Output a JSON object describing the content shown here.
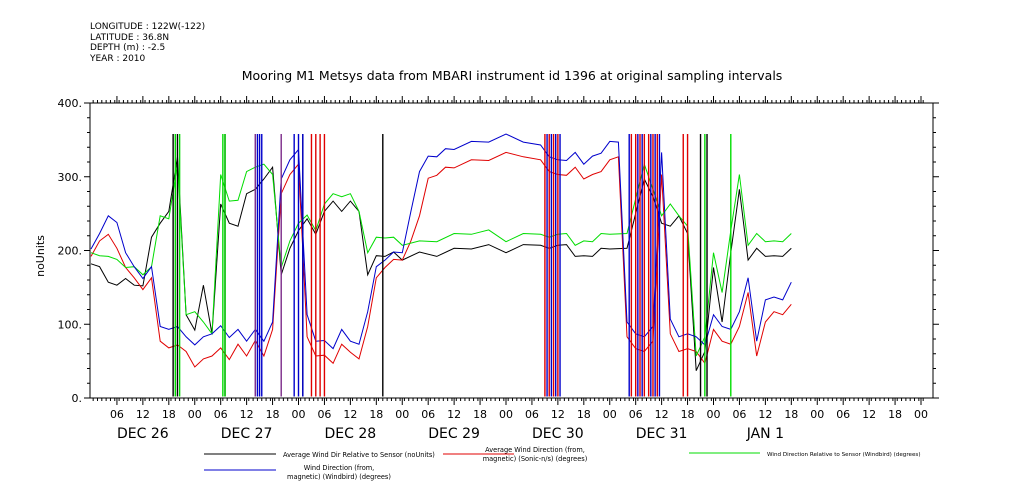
{
  "header": {
    "longitude": "LONGITUDE : 122W(-122)",
    "latitude": "LATITUDE : 36.8N",
    "depth": "DEPTH (m) : -2.5",
    "year": "YEAR : 2010"
  },
  "chart_data": {
    "type": "line",
    "title": "Mooring M1 Metsys data from MBARI instrument id 1396 at original sampling intervals",
    "ylabel": "noUnits",
    "xlabel": "",
    "ylim": [
      0,
      400
    ],
    "yticks": [
      0,
      100,
      200,
      300,
      400
    ],
    "ytick_labels": [
      "0.",
      "100.",
      "200.",
      "300.",
      "400."
    ],
    "xlim": [
      0,
      162
    ],
    "x_unit": "hours since DEC 26 00:00 (2010)",
    "hour_ticks": [
      "06",
      "12",
      "18",
      "00",
      "06",
      "12",
      "18",
      "00",
      "06",
      "12",
      "18",
      "00",
      "06",
      "12",
      "18",
      "00",
      "06",
      "12",
      "18",
      "00",
      "06",
      "12",
      "18",
      "00",
      "06",
      "12",
      "18",
      "00",
      "06",
      "12",
      "18",
      "00"
    ],
    "hour_tick_x": [
      6,
      12,
      18,
      24,
      30,
      36,
      42,
      48,
      54,
      60,
      66,
      72,
      78,
      84,
      90,
      96,
      102,
      108,
      114,
      120,
      126,
      132,
      138,
      144,
      150,
      156,
      162,
      168,
      174,
      180,
      186,
      192
    ],
    "day_labels": [
      "DEC 26",
      "DEC 27",
      "DEC 28",
      "DEC 29",
      "DEC 30",
      "DEC 31",
      "JAN  1"
    ],
    "day_label_x": [
      12,
      36,
      60,
      84,
      108,
      132,
      156
    ],
    "series": [
      {
        "name": "Average Wind Dir Relative to Sensor (noUnits)",
        "color": "#000000",
        "x": [
          0,
          2,
          4,
          6,
          8,
          10,
          12,
          14,
          16,
          18,
          20,
          22,
          24,
          26,
          28,
          30,
          32,
          34,
          36,
          38,
          40,
          42,
          44,
          46,
          48,
          50,
          52,
          54,
          56,
          58,
          60,
          62,
          64,
          66,
          68,
          70,
          72,
          76,
          80,
          84,
          88,
          92,
          96,
          100,
          104,
          106,
          108,
          110,
          112,
          114,
          116,
          118,
          120,
          124,
          128,
          130,
          132,
          134,
          136,
          138,
          140,
          142,
          144,
          146,
          148,
          150,
          152,
          154,
          156,
          158,
          160,
          162
        ],
        "y": [
          185,
          175,
          160,
          150,
          165,
          150,
          155,
          215,
          240,
          250,
          330,
          110,
          95,
          150,
          90,
          260,
          240,
          230,
          280,
          280,
          300,
          310,
          170,
          200,
          230,
          240,
          225,
          250,
          270,
          250,
          270,
          250,
          170,
          190,
          195,
          195,
          190,
          195,
          195,
          200,
          205,
          205,
          200,
          205,
          210,
          200,
          210,
          205,
          195,
          190,
          195,
          200,
          205,
          200,
          300,
          270,
          240,
          230,
          250,
          220,
          40,
          60,
          180,
          100,
          200,
          280,
          190,
          200,
          195,
          190,
          195,
          200
        ]
      },
      {
        "name": "Average Wind Direction (from, magnetic) (Sonic-n/s) (degrees)",
        "color": "#e00000",
        "x": [
          0,
          2,
          4,
          6,
          8,
          10,
          12,
          14,
          16,
          18,
          20,
          22,
          24,
          26,
          28,
          30,
          32,
          34,
          36,
          38,
          40,
          42,
          44,
          46,
          48,
          50,
          52,
          54,
          56,
          58,
          60,
          62,
          64,
          66,
          68,
          70,
          72,
          74,
          76,
          78,
          80,
          82,
          84,
          88,
          92,
          96,
          100,
          104,
          106,
          108,
          110,
          112,
          114,
          116,
          118,
          120,
          122,
          124,
          126,
          128,
          130,
          132,
          134,
          136,
          138,
          140,
          142,
          144,
          146,
          148,
          150,
          152,
          154,
          156,
          158,
          160,
          162
        ],
        "y": [
          195,
          210,
          225,
          200,
          180,
          160,
          150,
          160,
          80,
          65,
          75,
          60,
          45,
          50,
          60,
          65,
          55,
          70,
          60,
          75,
          60,
          90,
          280,
          300,
          320,
          80,
          60,
          55,
          50,
          70,
          65,
          50,
          100,
          160,
          180,
          185,
          190,
          210,
          250,
          295,
          305,
          310,
          315,
          320,
          325,
          330,
          330,
          320,
          310,
          300,
          305,
          310,
          300,
          300,
          310,
          320,
          330,
          80,
          70,
          60,
          80,
          300,
          90,
          60,
          70,
          60,
          50,
          90,
          80,
          70,
          100,
          140,
          60,
          100,
          120,
          110,
          130
        ]
      },
      {
        "name": "Wind Direction Relative to Sensor (Windbird) (degrees)",
        "color": "#00dd00",
        "x": [
          0,
          2,
          4,
          6,
          8,
          10,
          12,
          14,
          16,
          18,
          20,
          22,
          24,
          26,
          28,
          30,
          32,
          34,
          36,
          38,
          40,
          42,
          44,
          46,
          48,
          50,
          52,
          54,
          56,
          58,
          60,
          62,
          64,
          66,
          68,
          70,
          72,
          76,
          80,
          84,
          88,
          92,
          96,
          100,
          104,
          106,
          108,
          110,
          112,
          114,
          116,
          118,
          120,
          124,
          128,
          130,
          132,
          134,
          136,
          138,
          140,
          142,
          144,
          146,
          148,
          150,
          152,
          154,
          156,
          158,
          160,
          162
        ],
        "y": [
          200,
          190,
          195,
          185,
          180,
          175,
          170,
          175,
          250,
          240,
          320,
          110,
          120,
          100,
          90,
          300,
          270,
          265,
          310,
          310,
          320,
          300,
          180,
          210,
          240,
          245,
          230,
          260,
          280,
          270,
          280,
          250,
          200,
          215,
          220,
          215,
          210,
          210,
          215,
          220,
          225,
          225,
          215,
          220,
          225,
          215,
          225,
          220,
          210,
          210,
          215,
          220,
          225,
          220,
          320,
          280,
          250,
          260,
          250,
          230,
          60,
          80,
          200,
          140,
          230,
          300,
          210,
          220,
          215,
          210,
          215,
          220
        ]
      },
      {
        "name": "Wind Direction (from, magnetic) (Windbird) (degrees)",
        "color": "#0000cc",
        "x": [
          0,
          2,
          4,
          6,
          8,
          10,
          12,
          14,
          16,
          18,
          20,
          22,
          24,
          26,
          28,
          30,
          32,
          34,
          36,
          38,
          40,
          42,
          44,
          46,
          48,
          50,
          52,
          54,
          56,
          58,
          60,
          62,
          64,
          66,
          68,
          70,
          72,
          74,
          76,
          78,
          80,
          82,
          84,
          88,
          92,
          96,
          100,
          104,
          106,
          108,
          110,
          112,
          114,
          116,
          118,
          120,
          122,
          124,
          126,
          128,
          130,
          132,
          134,
          136,
          138,
          140,
          142,
          144,
          146,
          148,
          150,
          152,
          154,
          156,
          158,
          160,
          162
        ],
        "y": [
          205,
          220,
          250,
          235,
          200,
          175,
          165,
          175,
          100,
          90,
          100,
          80,
          75,
          80,
          90,
          95,
          85,
          90,
          80,
          90,
          80,
          100,
          300,
          320,
          340,
          110,
          80,
          75,
          70,
          90,
          80,
          70,
          120,
          175,
          190,
          195,
          200,
          250,
          310,
          325,
          330,
          335,
          340,
          345,
          350,
          355,
          350,
          340,
          330,
          320,
          325,
          330,
          320,
          325,
          335,
          345,
          350,
          100,
          90,
          80,
          100,
          330,
          110,
          80,
          90,
          80,
          75,
          110,
          100,
          90,
          120,
          160,
          80,
          130,
          140,
          130,
          160
        ]
      }
    ],
    "spikes": [
      {
        "color": "#000000",
        "x": [
          19,
          20,
          31,
          49,
          67.5,
          141,
          142.5
        ]
      },
      {
        "color": "#00dd00",
        "x": [
          19.5,
          20.5,
          30.5,
          31,
          142,
          148
        ]
      },
      {
        "color": "#e00000",
        "x": [
          51,
          52,
          53,
          54,
          105,
          106,
          107,
          108,
          125,
          126,
          127,
          128,
          129,
          130,
          131,
          137,
          138
        ]
      },
      {
        "color": "#0000cc",
        "x": [
          38.5,
          39,
          39.5,
          47,
          48,
          49,
          105.5,
          106.5,
          107.5,
          108.5,
          124.5,
          126.5,
          127.5,
          129.5,
          130.5,
          131.5
        ]
      },
      {
        "color": "#7b2a8a",
        "x": [
          38,
          44
        ]
      }
    ]
  },
  "legend": [
    {
      "label": "Average Wind Dir Relative to Sensor (noUnits)",
      "color": "#000000"
    },
    {
      "label": "Average Wind Direction (from,\nmagnetic) (Sonic-n/s) (degrees)",
      "color": "#e00000"
    },
    {
      "label": "Wind Direction Relative to Sensor (Windbird) (degrees)",
      "color": "#00dd00"
    },
    {
      "label": "Wind Direction (from,\nmagnetic) (Windbird) (degrees)",
      "color": "#0000cc"
    }
  ]
}
